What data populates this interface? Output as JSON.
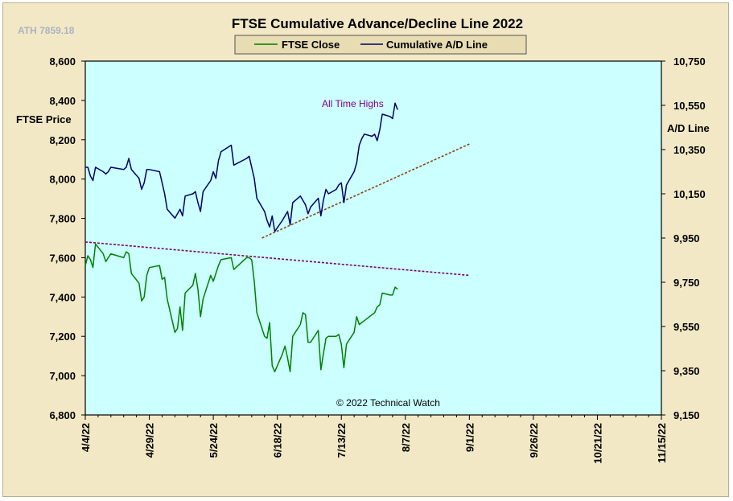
{
  "chart_data": {
    "type": "line",
    "title": "FTSE Cumulative  Advance/Decline  Line 2022",
    "ath_label": "ATH 7859.18",
    "left_axis_label": "FTSE Price",
    "right_axis_label": "A/D Line",
    "annotation_top": "All Time Highs",
    "copyright": "© 2022 Technical Watch",
    "legend_position": "top-center",
    "grid": false,
    "left_ylim": [
      6800,
      8600
    ],
    "right_ylim": [
      9150,
      10750
    ],
    "left_ticks": [
      "8,600",
      "8,400",
      "8,200",
      "8,000",
      "7,800",
      "7,600",
      "7,400",
      "7,200",
      "7,000",
      "6,800"
    ],
    "right_ticks": [
      "10,750",
      "10,550",
      "10,350",
      "10,150",
      "9,950",
      "9,750",
      "9,550",
      "9,350",
      "9,150"
    ],
    "x_ticks": [
      "4/4/22",
      "4/29/22",
      "5/24/22",
      "6/18/22",
      "7/13/22",
      "8/7/22",
      "9/1/22",
      "9/26/22",
      "10/21/22",
      "11/15/22"
    ],
    "colors": {
      "plot_background": "#ccffff",
      "frame_background": "#f2e8c6",
      "ftse_close": "#008000",
      "ad_line": "#000066",
      "ad_trendline": "#8b4513",
      "ftse_trendline": "#800060",
      "annotation": "#800080"
    },
    "series": [
      {
        "name": "FTSE Close",
        "axis": "left",
        "points": [
          [
            "2022-04-04",
            7560
          ],
          [
            "2022-04-05",
            7610
          ],
          [
            "2022-04-06",
            7590
          ],
          [
            "2022-04-07",
            7550
          ],
          [
            "2022-04-08",
            7670
          ],
          [
            "2022-04-11",
            7620
          ],
          [
            "2022-04-12",
            7580
          ],
          [
            "2022-04-13",
            7600
          ],
          [
            "2022-04-14",
            7620
          ],
          [
            "2022-04-19",
            7600
          ],
          [
            "2022-04-20",
            7630
          ],
          [
            "2022-04-21",
            7620
          ],
          [
            "2022-04-22",
            7520
          ],
          [
            "2022-04-25",
            7470
          ],
          [
            "2022-04-26",
            7380
          ],
          [
            "2022-04-27",
            7400
          ],
          [
            "2022-04-28",
            7510
          ],
          [
            "2022-04-29",
            7550
          ],
          [
            "2022-05-03",
            7560
          ],
          [
            "2022-05-04",
            7490
          ],
          [
            "2022-05-05",
            7500
          ],
          [
            "2022-05-06",
            7390
          ],
          [
            "2022-05-09",
            7220
          ],
          [
            "2022-05-10",
            7240
          ],
          [
            "2022-05-11",
            7350
          ],
          [
            "2022-05-12",
            7230
          ],
          [
            "2022-05-13",
            7420
          ],
          [
            "2022-05-16",
            7460
          ],
          [
            "2022-05-17",
            7520
          ],
          [
            "2022-05-18",
            7440
          ],
          [
            "2022-05-19",
            7300
          ],
          [
            "2022-05-20",
            7390
          ],
          [
            "2022-05-23",
            7510
          ],
          [
            "2022-05-24",
            7480
          ],
          [
            "2022-05-25",
            7520
          ],
          [
            "2022-05-26",
            7560
          ],
          [
            "2022-05-27",
            7590
          ],
          [
            "2022-05-31",
            7600
          ],
          [
            "2022-06-01",
            7540
          ],
          [
            "2022-06-06",
            7600
          ],
          [
            "2022-06-07",
            7600
          ],
          [
            "2022-06-08",
            7590
          ],
          [
            "2022-06-09",
            7480
          ],
          [
            "2022-06-10",
            7320
          ],
          [
            "2022-06-13",
            7200
          ],
          [
            "2022-06-14",
            7190
          ],
          [
            "2022-06-15",
            7270
          ],
          [
            "2022-06-16",
            7050
          ],
          [
            "2022-06-17",
            7020
          ],
          [
            "2022-06-20",
            7110
          ],
          [
            "2022-06-21",
            7150
          ],
          [
            "2022-06-22",
            7090
          ],
          [
            "2022-06-23",
            7020
          ],
          [
            "2022-06-24",
            7200
          ],
          [
            "2022-06-27",
            7260
          ],
          [
            "2022-06-28",
            7320
          ],
          [
            "2022-06-29",
            7310
          ],
          [
            "2022-06-30",
            7170
          ],
          [
            "2022-07-01",
            7170
          ],
          [
            "2022-07-04",
            7230
          ],
          [
            "2022-07-05",
            7030
          ],
          [
            "2022-07-06",
            7110
          ],
          [
            "2022-07-07",
            7190
          ],
          [
            "2022-07-08",
            7200
          ],
          [
            "2022-07-11",
            7200
          ],
          [
            "2022-07-12",
            7210
          ],
          [
            "2022-07-13",
            7160
          ],
          [
            "2022-07-14",
            7040
          ],
          [
            "2022-07-15",
            7160
          ],
          [
            "2022-07-18",
            7220
          ],
          [
            "2022-07-19",
            7300
          ],
          [
            "2022-07-20",
            7260
          ],
          [
            "2022-07-21",
            7270
          ],
          [
            "2022-07-22",
            7280
          ],
          [
            "2022-07-25",
            7310
          ],
          [
            "2022-07-26",
            7320
          ],
          [
            "2022-07-27",
            7350
          ],
          [
            "2022-07-28",
            7360
          ],
          [
            "2022-07-29",
            7420
          ],
          [
            "2022-08-01",
            7410
          ],
          [
            "2022-08-02",
            7410
          ],
          [
            "2022-08-03",
            7450
          ],
          [
            "2022-08-04",
            7440
          ]
        ]
      },
      {
        "name": "Cumulative A/D Line",
        "axis": "right",
        "points": [
          [
            "2022-04-04",
            10270
          ],
          [
            "2022-04-05",
            10270
          ],
          [
            "2022-04-06",
            10230
          ],
          [
            "2022-04-07",
            10210
          ],
          [
            "2022-04-08",
            10270
          ],
          [
            "2022-04-11",
            10250
          ],
          [
            "2022-04-12",
            10240
          ],
          [
            "2022-04-13",
            10250
          ],
          [
            "2022-04-14",
            10270
          ],
          [
            "2022-04-19",
            10260
          ],
          [
            "2022-04-20",
            10270
          ],
          [
            "2022-04-21",
            10310
          ],
          [
            "2022-04-22",
            10260
          ],
          [
            "2022-04-25",
            10220
          ],
          [
            "2022-04-26",
            10170
          ],
          [
            "2022-04-27",
            10200
          ],
          [
            "2022-04-28",
            10260
          ],
          [
            "2022-04-29",
            10260
          ],
          [
            "2022-05-03",
            10250
          ],
          [
            "2022-05-04",
            10200
          ],
          [
            "2022-05-05",
            10150
          ],
          [
            "2022-05-06",
            10080
          ],
          [
            "2022-05-09",
            10040
          ],
          [
            "2022-05-10",
            10060
          ],
          [
            "2022-05-11",
            10080
          ],
          [
            "2022-05-12",
            10050
          ],
          [
            "2022-05-13",
            10140
          ],
          [
            "2022-05-16",
            10150
          ],
          [
            "2022-05-17",
            10160
          ],
          [
            "2022-05-18",
            10110
          ],
          [
            "2022-05-19",
            10070
          ],
          [
            "2022-05-20",
            10160
          ],
          [
            "2022-05-23",
            10210
          ],
          [
            "2022-05-24",
            10250
          ],
          [
            "2022-05-25",
            10220
          ],
          [
            "2022-05-26",
            10300
          ],
          [
            "2022-05-27",
            10340
          ],
          [
            "2022-05-31",
            10370
          ],
          [
            "2022-06-01",
            10280
          ],
          [
            "2022-06-06",
            10310
          ],
          [
            "2022-06-07",
            10320
          ],
          [
            "2022-06-08",
            10270
          ],
          [
            "2022-06-09",
            10220
          ],
          [
            "2022-06-10",
            10130
          ],
          [
            "2022-06-13",
            10070
          ],
          [
            "2022-06-14",
            10030
          ],
          [
            "2022-06-15",
            10000
          ],
          [
            "2022-06-16",
            10050
          ],
          [
            "2022-06-17",
            9980
          ],
          [
            "2022-06-20",
            10030
          ],
          [
            "2022-06-21",
            10050
          ],
          [
            "2022-06-22",
            10070
          ],
          [
            "2022-06-23",
            10010
          ],
          [
            "2022-06-24",
            10110
          ],
          [
            "2022-06-27",
            10140
          ],
          [
            "2022-06-28",
            10120
          ],
          [
            "2022-06-29",
            10100
          ],
          [
            "2022-06-30",
            10060
          ],
          [
            "2022-07-01",
            10090
          ],
          [
            "2022-07-04",
            10130
          ],
          [
            "2022-07-05",
            10050
          ],
          [
            "2022-07-06",
            10120
          ],
          [
            "2022-07-07",
            10170
          ],
          [
            "2022-07-08",
            10150
          ],
          [
            "2022-07-11",
            10170
          ],
          [
            "2022-07-12",
            10190
          ],
          [
            "2022-07-13",
            10200
          ],
          [
            "2022-07-14",
            10110
          ],
          [
            "2022-07-15",
            10190
          ],
          [
            "2022-07-18",
            10250
          ],
          [
            "2022-07-19",
            10290
          ],
          [
            "2022-07-20",
            10370
          ],
          [
            "2022-07-21",
            10400
          ],
          [
            "2022-07-22",
            10420
          ],
          [
            "2022-07-25",
            10410
          ],
          [
            "2022-07-26",
            10420
          ],
          [
            "2022-07-27",
            10390
          ],
          [
            "2022-07-28",
            10440
          ],
          [
            "2022-07-29",
            10510
          ],
          [
            "2022-08-01",
            10500
          ],
          [
            "2022-08-02",
            10490
          ],
          [
            "2022-08-03",
            10560
          ],
          [
            "2022-08-04",
            10530
          ]
        ]
      }
    ],
    "trendlines": [
      {
        "axis": "right",
        "from": [
          "2022-06-12",
          9950
        ],
        "to": [
          "2022-09-01",
          10375
        ],
        "style": "dotted"
      },
      {
        "axis": "left",
        "from": [
          "2022-04-04",
          7680
        ],
        "to": [
          "2022-09-01",
          7510
        ],
        "style": "dotted"
      }
    ]
  }
}
